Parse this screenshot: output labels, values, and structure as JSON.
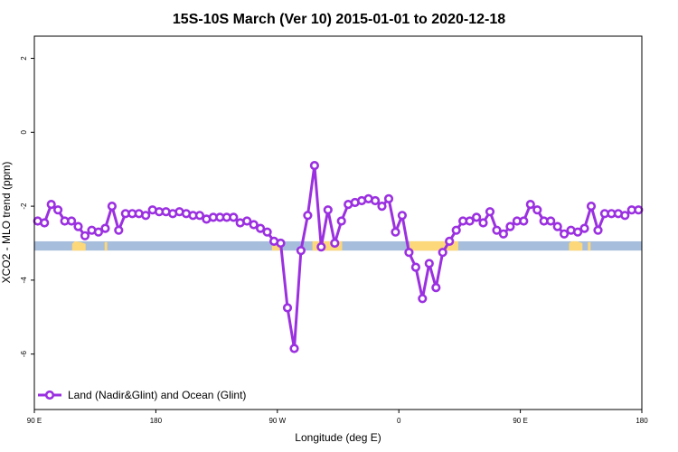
{
  "chart_data": {
    "type": "line",
    "title": "15S-10S March (Ver 10)   2015-01-01 to 2020-12-18",
    "xlabel": "Longitude (deg E)",
    "ylabel": "XCO2 - MLO trend (ppm)",
    "xlim": [
      90,
      540
    ],
    "ylim": [
      -7.5,
      2.6
    ],
    "x_ticks": [
      {
        "value": 90,
        "label": "90 E"
      },
      {
        "value": 180,
        "label": "180"
      },
      {
        "value": 270,
        "label": "90 W"
      },
      {
        "value": 360,
        "label": "0"
      },
      {
        "value": 450,
        "label": "90 E"
      },
      {
        "value": 540,
        "label": "180"
      }
    ],
    "y_ticks": [
      {
        "value": 2,
        "label": "2"
      },
      {
        "value": 0,
        "label": "0"
      },
      {
        "value": -2,
        "label": "-2"
      },
      {
        "value": -4,
        "label": "-4"
      },
      {
        "value": -6,
        "label": "-6"
      }
    ],
    "legend_position": "bottom-left",
    "grid": false,
    "colors": {
      "series": "#9b30e0",
      "ocean": "#a6bddb",
      "land": "#fdd87a"
    },
    "series": [
      {
        "name": "Land (Nadir&Glint) and Ocean (Glint)",
        "x": [
          92.5,
          97.5,
          102.5,
          107.5,
          112.5,
          117.5,
          122.5,
          127.5,
          132.5,
          137.5,
          142.5,
          147.5,
          152.5,
          157.5,
          162.5,
          167.5,
          172.5,
          177.5,
          182.5,
          187.5,
          192.5,
          197.5,
          202.5,
          207.5,
          212.5,
          217.5,
          222.5,
          227.5,
          232.5,
          237.5,
          242.5,
          247.5,
          252.5,
          257.5,
          262.5,
          267.5,
          272.5,
          277.5,
          282.5,
          287.5,
          292.5,
          297.5,
          302.5,
          307.5,
          312.5,
          317.5,
          322.5,
          327.5,
          332.5,
          337.5,
          342.5,
          347.5,
          352.5,
          357.5,
          362.5,
          367.5,
          372.5,
          377.5,
          382.5,
          387.5,
          392.5,
          397.5,
          402.5,
          407.5,
          412.5,
          417.5,
          422.5,
          427.5,
          432.5,
          437.5,
          442.5,
          447.5,
          452.5,
          457.5,
          462.5,
          467.5,
          472.5,
          477.5,
          482.5,
          487.5,
          492.5,
          497.5,
          502.5,
          507.5,
          512.5,
          517.5,
          522.5,
          527.5,
          532.5,
          537.5
        ],
        "y": [
          -2.4,
          -2.45,
          -1.95,
          -2.1,
          -2.4,
          -2.4,
          -2.55,
          -2.8,
          -2.65,
          -2.7,
          -2.6,
          -2.0,
          -2.65,
          -2.2,
          -2.2,
          -2.2,
          -2.25,
          -2.1,
          -2.15,
          -2.15,
          -2.2,
          -2.15,
          -2.2,
          -2.25,
          -2.25,
          -2.35,
          -2.3,
          -2.3,
          -2.3,
          -2.3,
          -2.45,
          -2.4,
          -2.5,
          -2.6,
          -2.7,
          -2.95,
          -3.0,
          -4.75,
          -5.85,
          -3.2,
          -2.25,
          -0.9,
          -3.1,
          -2.1,
          -3.0,
          -2.4,
          -1.95,
          -1.9,
          -1.85,
          -1.8,
          -1.85,
          -2.0,
          -1.8,
          -2.7,
          -2.25,
          -3.25,
          -3.65,
          -4.5,
          -3.55,
          -4.2,
          -3.25,
          -2.95,
          -2.65,
          -2.4,
          -2.4,
          -2.3,
          -2.45,
          -2.15,
          -2.65,
          -2.75,
          -2.55,
          -2.4,
          -2.4,
          -1.95,
          -2.1,
          -2.4,
          -2.4,
          -2.55,
          -2.75,
          -2.65,
          -2.7,
          -2.6,
          -2.0,
          -2.65,
          -2.2,
          -2.2,
          -2.2,
          -2.25,
          -2.1,
          -2.1
        ]
      }
    ],
    "ocean_band": {
      "y_range": [
        -3.2,
        -2.95
      ]
    },
    "land_segments": [
      {
        "x_range": [
          118,
          128
        ],
        "y_top": -3.02,
        "y_peaks": [
          [
            120,
            -2.95
          ],
          [
            124,
            -2.97
          ]
        ]
      },
      {
        "x_range": [
          142,
          144
        ],
        "y_top": -2.97,
        "y_peaks": []
      },
      {
        "x_range": [
          266,
          272
        ],
        "y_top": -3.02,
        "y_peaks": []
      },
      {
        "x_range": [
          296,
          318
        ],
        "y_top": -2.95,
        "y_peaks": []
      },
      {
        "x_range": [
          368,
          404
        ],
        "y_top": -2.95,
        "y_peaks": []
      },
      {
        "x_range": [
          486,
          496
        ],
        "y_top": -3.0,
        "y_peaks": [
          [
            488,
            -2.95
          ],
          [
            492,
            -2.95
          ]
        ]
      },
      {
        "x_range": [
          500,
          502
        ],
        "y_top": -2.97,
        "y_peaks": []
      }
    ]
  }
}
